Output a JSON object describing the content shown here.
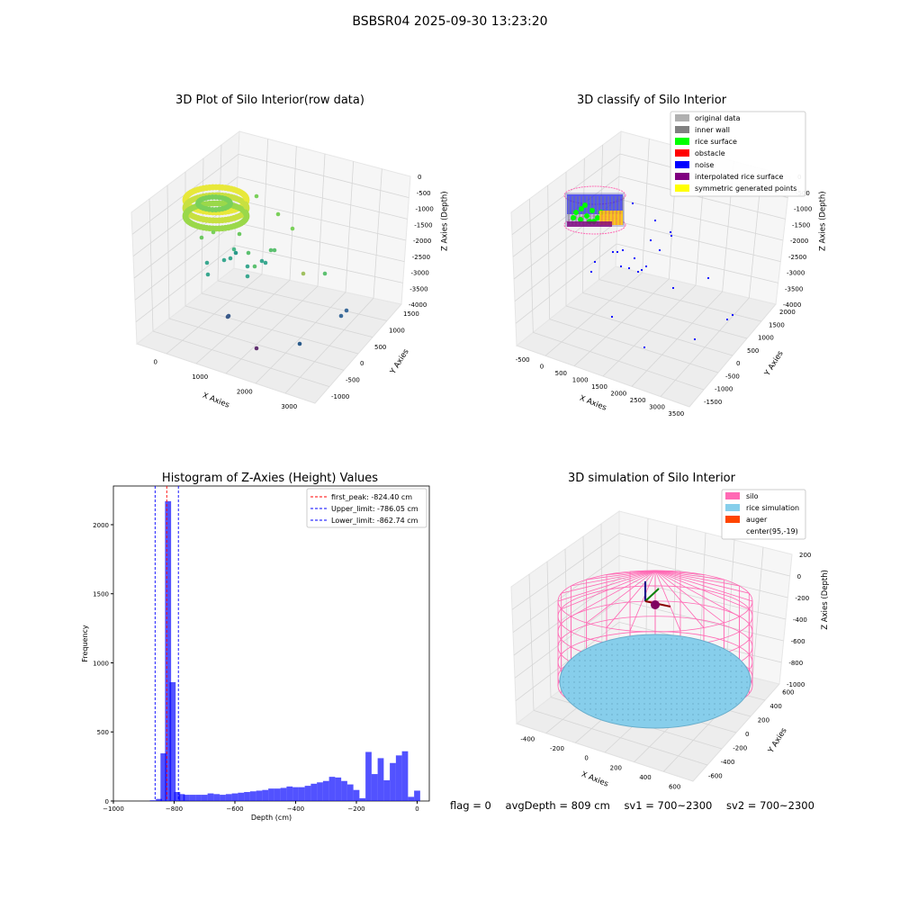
{
  "figure": {
    "suptitle": "BSBSR04 2025-09-30 13:23:20",
    "status": {
      "flag": "flag = 0",
      "avg_depth": "avgDepth = 809 cm",
      "sv1": "sv1 = 700~2300",
      "sv2": "sv2 = 700~2300"
    }
  },
  "panels": {
    "raw": {
      "title": "3D Plot of Silo Interior(row data)",
      "xlabel": "X Axies",
      "ylabel": "Y Axies",
      "zlabel": "Z Axies (Depth)",
      "xticks": [
        "0",
        "1000",
        "2000",
        "3000"
      ],
      "yticks": [
        "-1000",
        "-500",
        "0",
        "500",
        "1000",
        "1500"
      ],
      "zticks": [
        "0",
        "-500",
        "-1000",
        "-1500",
        "-2000",
        "-2500",
        "-3000",
        "-3500",
        "-4000"
      ]
    },
    "classify": {
      "title": "3D classify of Silo Interior",
      "xlabel": "X Axies",
      "ylabel": "Y Axies",
      "zlabel": "Z Axies (Depth)",
      "xticks": [
        "-500",
        "0",
        "500",
        "1000",
        "1500",
        "2000",
        "2500",
        "3000",
        "3500"
      ],
      "yticks": [
        "-1500",
        "-1000",
        "-500",
        "0",
        "500",
        "1000",
        "1500",
        "2000"
      ],
      "zticks": [
        "0",
        "-500",
        "-1000",
        "-1500",
        "-2000",
        "-2500",
        "-3000",
        "-3500",
        "-4000"
      ],
      "legend": [
        {
          "label": "original data",
          "color": "#b0b0b0"
        },
        {
          "label": "inner wall",
          "color": "#808080"
        },
        {
          "label": "rice surface",
          "color": "#00ff00"
        },
        {
          "label": "obstacle",
          "color": "#ff0000"
        },
        {
          "label": "noise",
          "color": "#0000ff"
        },
        {
          "label": "interpolated rice surface",
          "color": "#800080"
        },
        {
          "label": "symmetric generated points",
          "color": "#ffff00"
        }
      ]
    },
    "simulation": {
      "title": "3D simulation of Silo Interior",
      "xlabel": "X Axies",
      "ylabel": "Y Axies",
      "zlabel": "Z Axies (Depth)",
      "xticks": [
        "-400",
        "-200",
        "0",
        "200",
        "400",
        "600"
      ],
      "yticks": [
        "-600",
        "-400",
        "-200",
        "0",
        "200",
        "400",
        "600"
      ],
      "zticks": [
        "200",
        "0",
        "-200",
        "-400",
        "-600",
        "-800",
        "-1000"
      ],
      "legend": [
        {
          "label": "silo",
          "color": "#ff69b4"
        },
        {
          "label": "rice simulation",
          "color": "#87ceeb"
        },
        {
          "label": "auger",
          "color": "#ff4500"
        },
        {
          "label": "center(95,-19)",
          "color": ""
        }
      ]
    }
  },
  "chart_data": {
    "type": "bar",
    "title": "Histogram of Z-Axies (Height) Values",
    "xlabel": "Depth (cm)",
    "ylabel": "Frequency",
    "xlim": [
      -1000,
      40
    ],
    "ylim": [
      0,
      2280
    ],
    "xticks": [
      -1000,
      -800,
      -600,
      -400,
      -200,
      0
    ],
    "yticks": [
      0,
      500,
      1000,
      1500,
      2000
    ],
    "bar_color": "#0000ff",
    "bin_width": 20,
    "bins": [
      {
        "x0": -880,
        "count": 5
      },
      {
        "x0": -860,
        "count": 15
      },
      {
        "x0": -845,
        "count": 345
      },
      {
        "x0": -830,
        "count": 2170
      },
      {
        "x0": -815,
        "count": 860
      },
      {
        "x0": -800,
        "count": 65
      },
      {
        "x0": -785,
        "count": 50
      },
      {
        "x0": -770,
        "count": 45
      },
      {
        "x0": -750,
        "count": 45
      },
      {
        "x0": -730,
        "count": 45
      },
      {
        "x0": -710,
        "count": 45
      },
      {
        "x0": -690,
        "count": 55
      },
      {
        "x0": -670,
        "count": 50
      },
      {
        "x0": -650,
        "count": 45
      },
      {
        "x0": -630,
        "count": 50
      },
      {
        "x0": -610,
        "count": 55
      },
      {
        "x0": -590,
        "count": 60
      },
      {
        "x0": -570,
        "count": 65
      },
      {
        "x0": -550,
        "count": 70
      },
      {
        "x0": -530,
        "count": 75
      },
      {
        "x0": -510,
        "count": 80
      },
      {
        "x0": -490,
        "count": 90
      },
      {
        "x0": -470,
        "count": 90
      },
      {
        "x0": -450,
        "count": 95
      },
      {
        "x0": -430,
        "count": 105
      },
      {
        "x0": -410,
        "count": 100
      },
      {
        "x0": -390,
        "count": 100
      },
      {
        "x0": -370,
        "count": 110
      },
      {
        "x0": -350,
        "count": 125
      },
      {
        "x0": -330,
        "count": 135
      },
      {
        "x0": -310,
        "count": 145
      },
      {
        "x0": -290,
        "count": 175
      },
      {
        "x0": -270,
        "count": 170
      },
      {
        "x0": -250,
        "count": 145
      },
      {
        "x0": -230,
        "count": 120
      },
      {
        "x0": -210,
        "count": 80
      },
      {
        "x0": -190,
        "count": 20
      },
      {
        "x0": -170,
        "count": 355
      },
      {
        "x0": -150,
        "count": 195
      },
      {
        "x0": -130,
        "count": 310
      },
      {
        "x0": -110,
        "count": 150
      },
      {
        "x0": -90,
        "count": 275
      },
      {
        "x0": -70,
        "count": 330
      },
      {
        "x0": -50,
        "count": 360
      },
      {
        "x0": -30,
        "count": 30
      },
      {
        "x0": -10,
        "count": 75
      }
    ],
    "vlines": [
      {
        "label": "first_peak: -824.40 cm",
        "x": -824.4,
        "color": "#ff0000"
      },
      {
        "label": "Upper_limit: -786.05 cm",
        "x": -786.05,
        "color": "#0000ff"
      },
      {
        "label": "Lower_limit: -862.74 cm",
        "x": -862.74,
        "color": "#0000ff"
      }
    ]
  }
}
